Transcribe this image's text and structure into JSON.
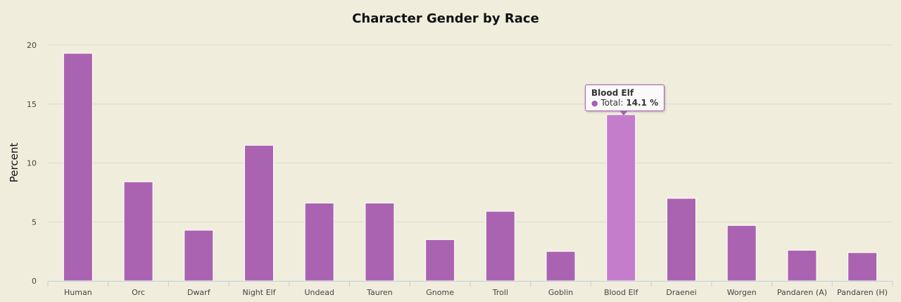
{
  "chart_data": {
    "type": "bar",
    "title": "Character Gender by Race",
    "ylabel": "Percent",
    "xlabel": "",
    "ylim": [
      0,
      20
    ],
    "yticks": [
      0,
      5,
      10,
      15,
      20
    ],
    "categories": [
      "Human",
      "Orc",
      "Dwarf",
      "Night Elf",
      "Undead",
      "Tauren",
      "Gnome",
      "Troll",
      "Goblin",
      "Blood Elf",
      "Draenei",
      "Worgen",
      "Pandaren (A)",
      "Pandaren (H)"
    ],
    "series": [
      {
        "name": "Total",
        "values": [
          19.3,
          8.4,
          4.3,
          11.5,
          6.6,
          6.6,
          3.5,
          5.9,
          2.5,
          14.1,
          7.0,
          4.7,
          2.6,
          2.4
        ]
      }
    ],
    "grid": true,
    "bar_color": "#aa63b1",
    "highlight_color": "#c47dcb"
  },
  "tooltip": {
    "category": "Blood Elf",
    "series_label": "Total:",
    "value_text": "14.1 %"
  }
}
